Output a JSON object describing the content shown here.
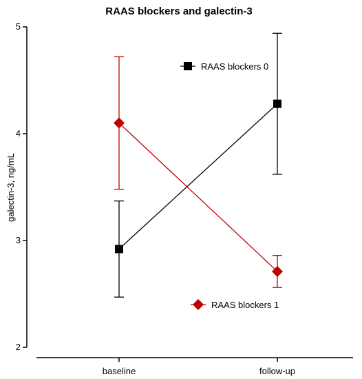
{
  "chart_data": {
    "type": "line",
    "title": "RAAS blockers and galectin-3",
    "xlabel": "",
    "ylabel": "galectin-3, ng/mL",
    "categories": [
      "baseline",
      "follow-up"
    ],
    "ylim": [
      2,
      5
    ],
    "yticks": [
      2,
      3,
      4,
      5
    ],
    "grid": false,
    "series": [
      {
        "name": "RAAS blockers 0",
        "color": "#000000",
        "marker": "square",
        "values": [
          2.92,
          4.28
        ],
        "error_low": [
          2.47,
          3.62
        ],
        "error_high": [
          3.37,
          4.94
        ]
      },
      {
        "name": "RAAS blockers 1",
        "color": "#c00000",
        "marker": "diamond",
        "values": [
          4.1,
          2.71
        ],
        "error_low": [
          3.48,
          2.56
        ],
        "error_high": [
          4.72,
          2.86
        ]
      }
    ],
    "legend": "inside"
  }
}
